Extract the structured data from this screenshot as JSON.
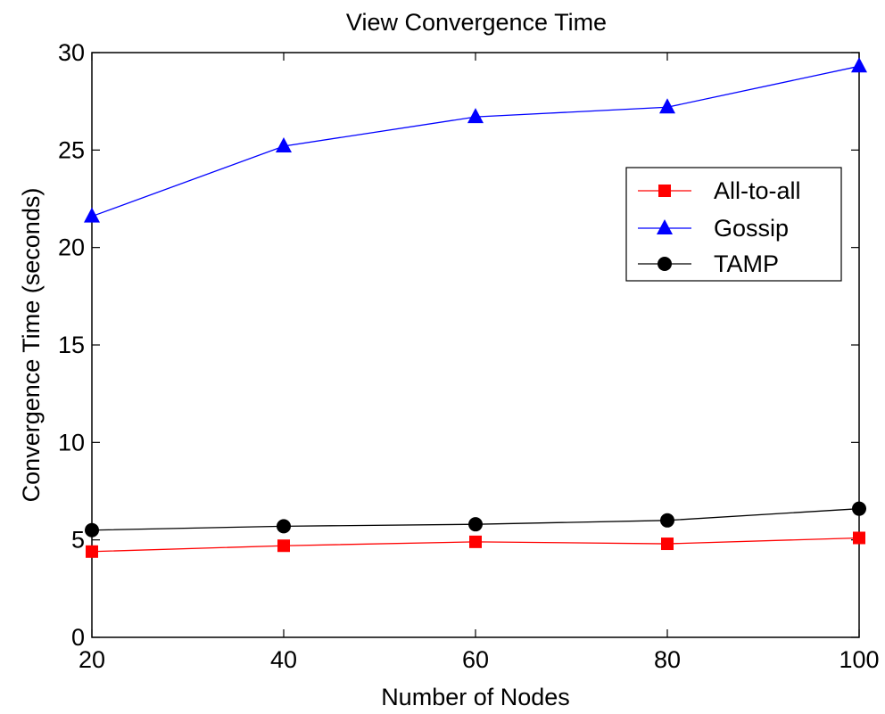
{
  "chart_data": {
    "type": "line",
    "title": "View Convergence Time",
    "xlabel": "Number of Nodes",
    "ylabel": "Convergence Time (seconds)",
    "x": [
      20,
      40,
      60,
      80,
      100
    ],
    "xlim": [
      20,
      100
    ],
    "ylim": [
      0,
      30
    ],
    "xticks": [
      "20",
      "40",
      "60",
      "80",
      "100"
    ],
    "yticks": [
      "0",
      "5",
      "10",
      "15",
      "20",
      "25",
      "30"
    ],
    "grid": false,
    "legend_position": "top-right",
    "series": [
      {
        "name": "All-to-all",
        "values": [
          4.4,
          4.7,
          4.9,
          4.8,
          5.1
        ],
        "color": "#ff0000",
        "marker": "square"
      },
      {
        "name": "Gossip",
        "values": [
          21.6,
          25.2,
          26.7,
          27.2,
          29.3
        ],
        "color": "#0000ff",
        "marker": "triangle"
      },
      {
        "name": "TAMP",
        "values": [
          5.5,
          5.7,
          5.8,
          6.0,
          6.6
        ],
        "color": "#000000",
        "marker": "circle"
      }
    ]
  }
}
